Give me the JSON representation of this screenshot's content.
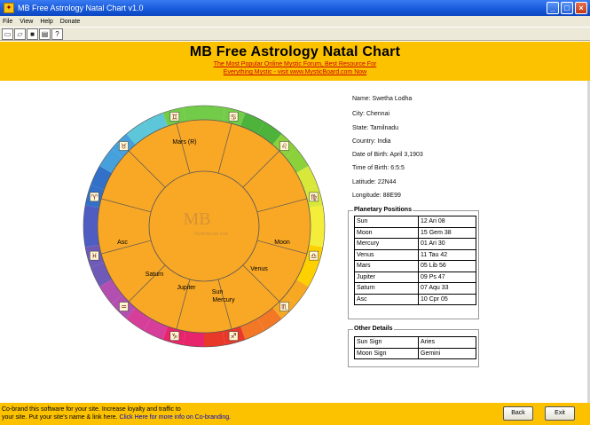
{
  "window": {
    "title": "MB Free Astrology Natal Chart v1.0",
    "btn_min": "_",
    "btn_max": "□",
    "btn_close": "×"
  },
  "menu": [
    "File",
    "View",
    "Help",
    "Donate"
  ],
  "toolbar": [
    "new-icon",
    "open-icon",
    "save-icon",
    "print-icon",
    "help-pointer-icon"
  ],
  "banner": {
    "title": "MB Free Astrology Natal Chart",
    "subtitle_1": "The Most Popular Online Mystic Forum, Best Resource For",
    "subtitle_2": "Everything Mystic - visit www.MysticBoard.com Now"
  },
  "chart": {
    "houses": {
      "h10": "Mars (R)",
      "h1": "Asc",
      "h7": "Moon",
      "h6": "Venus",
      "h4": "Jupiter",
      "h3": "Saturn",
      "h5a": "Sun",
      "h5b": "Mercury"
    },
    "logo": "MB",
    "logo_small": "MysticBoard.com",
    "colors": {
      "orange": "#f9a826",
      "ring": [
        "#72cc4a",
        "#4db33b",
        "#8bd13c",
        "#d7e83a",
        "#f4ee3a",
        "#ffd000",
        "#f7a823",
        "#f27826",
        "#e8382a",
        "#e8246b",
        "#d63e9a",
        "#b24fb0",
        "#6f5ab8",
        "#4f5dc3",
        "#3370c8",
        "#46a0dc",
        "#5ec6d9",
        "#72cc4a"
      ]
    }
  },
  "info": {
    "name": "Name: Swetha Lodha",
    "city": "City: Chennai",
    "state": "State: Tamilnadu",
    "country": "Country: India",
    "dob": "Date of Birth: April 3,1903",
    "tob": "Time of Birth: 6:5:5",
    "lat": "Latitude: 22N44",
    "lon": "Longitude: 88E99"
  },
  "planetary": {
    "title": "Planetary Positions",
    "rows": [
      [
        "Sun",
        "12 Ari 08"
      ],
      [
        "Moon",
        "15 Gem 38"
      ],
      [
        "Mercury",
        "01 Ari 30"
      ],
      [
        "Venus",
        "11 Tau 42"
      ],
      [
        "Mars",
        "05 Lib 56"
      ],
      [
        "Jupiter",
        "09 Ps 47"
      ],
      [
        "Saturn",
        "07 Aqu 33"
      ],
      [
        "Asc",
        "10 Cpr 05"
      ]
    ]
  },
  "other": {
    "title": "Other Details",
    "rows": [
      [
        "Sun Sign",
        "Aries"
      ],
      [
        "Moon Sign",
        "Gemini"
      ]
    ]
  },
  "status": {
    "line1": "Co-brand this software for your site. Increase loyalty and traffic to",
    "line2_a": "your site. Put your site's name & link here.",
    "line2_b": " Click Here for more info on Co-branding."
  },
  "buttons": {
    "back": "Back",
    "exit": "Exit"
  }
}
